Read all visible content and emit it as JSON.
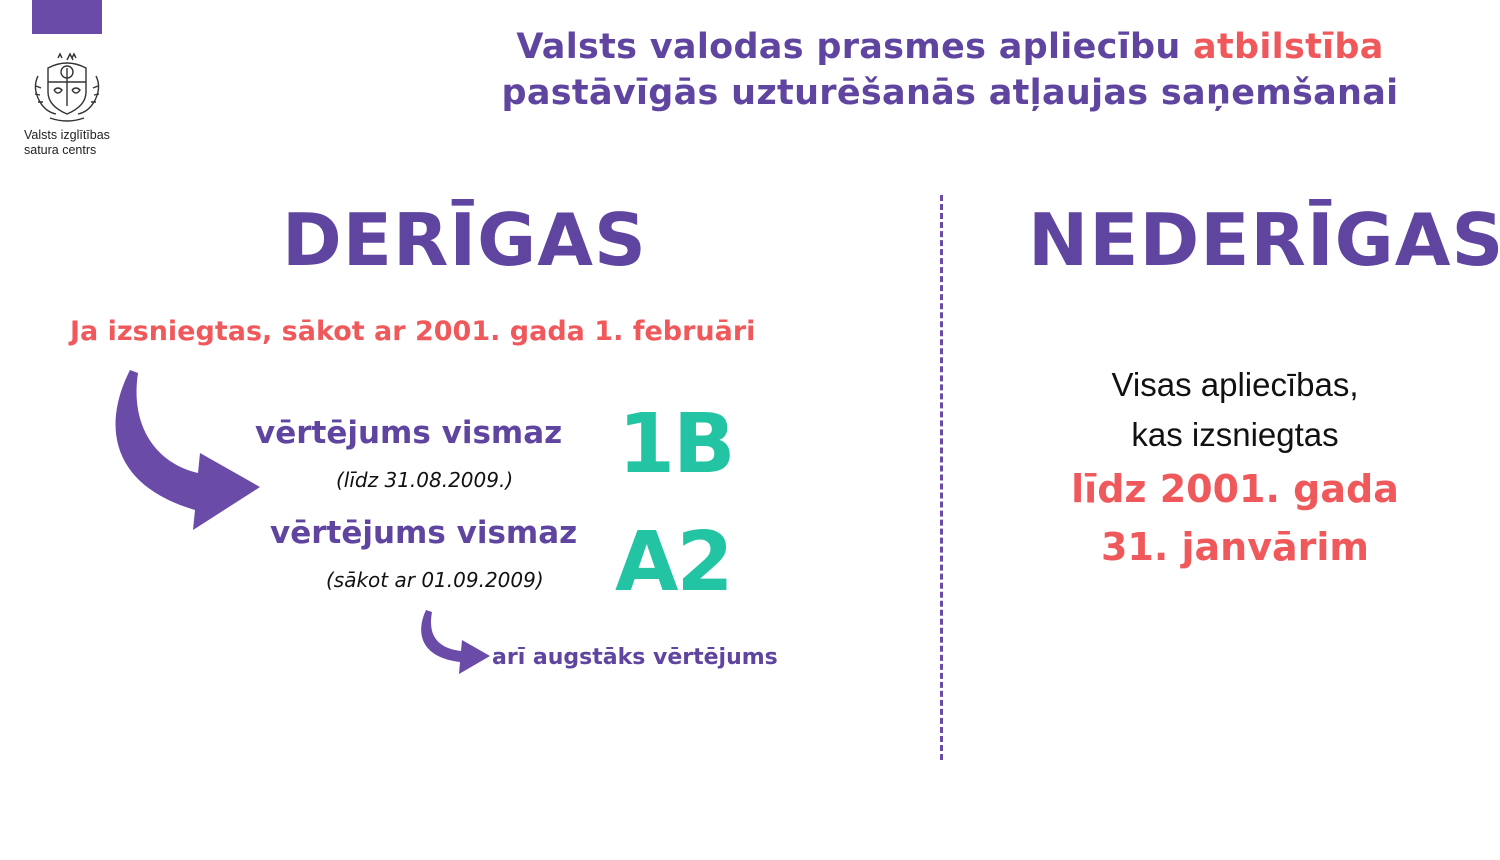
{
  "org": {
    "name_line1": "Valsts izglītības",
    "name_line2": "satura centrs",
    "accent_color": "#6a4ba8",
    "logo_icon": "latvia-coat-of-arms-icon"
  },
  "title": {
    "line1_part1": "Valsts valodas prasmes apliecību ",
    "line1_highlight": "atbilstība",
    "line2": "pastāvīgās uzturēšanās atļaujas saņemšanai"
  },
  "valid": {
    "heading": "DERĪGAS",
    "condition": "Ja izsniegtas, sākot ar 2001. gada 1. februāri",
    "rating1": {
      "label": "vērtējums vismaz",
      "note": "(līdz 31.08.2009.)",
      "grade": "1B"
    },
    "rating2": {
      "label": "vērtējums vismaz",
      "note": "(sākot ar 01.09.2009)",
      "grade": "A2"
    },
    "higher_note": "arī augstāks vērtējums"
  },
  "invalid": {
    "heading": "NEDERĪGAS",
    "line1": "Visas apliecības,",
    "line2": "kas izsniegtas",
    "highlight_line1": "līdz 2001. gada",
    "highlight_line2": "31. janvārim"
  },
  "colors": {
    "purple": "#5f45a0",
    "coral": "#f0595c",
    "teal": "#22c4a4"
  }
}
